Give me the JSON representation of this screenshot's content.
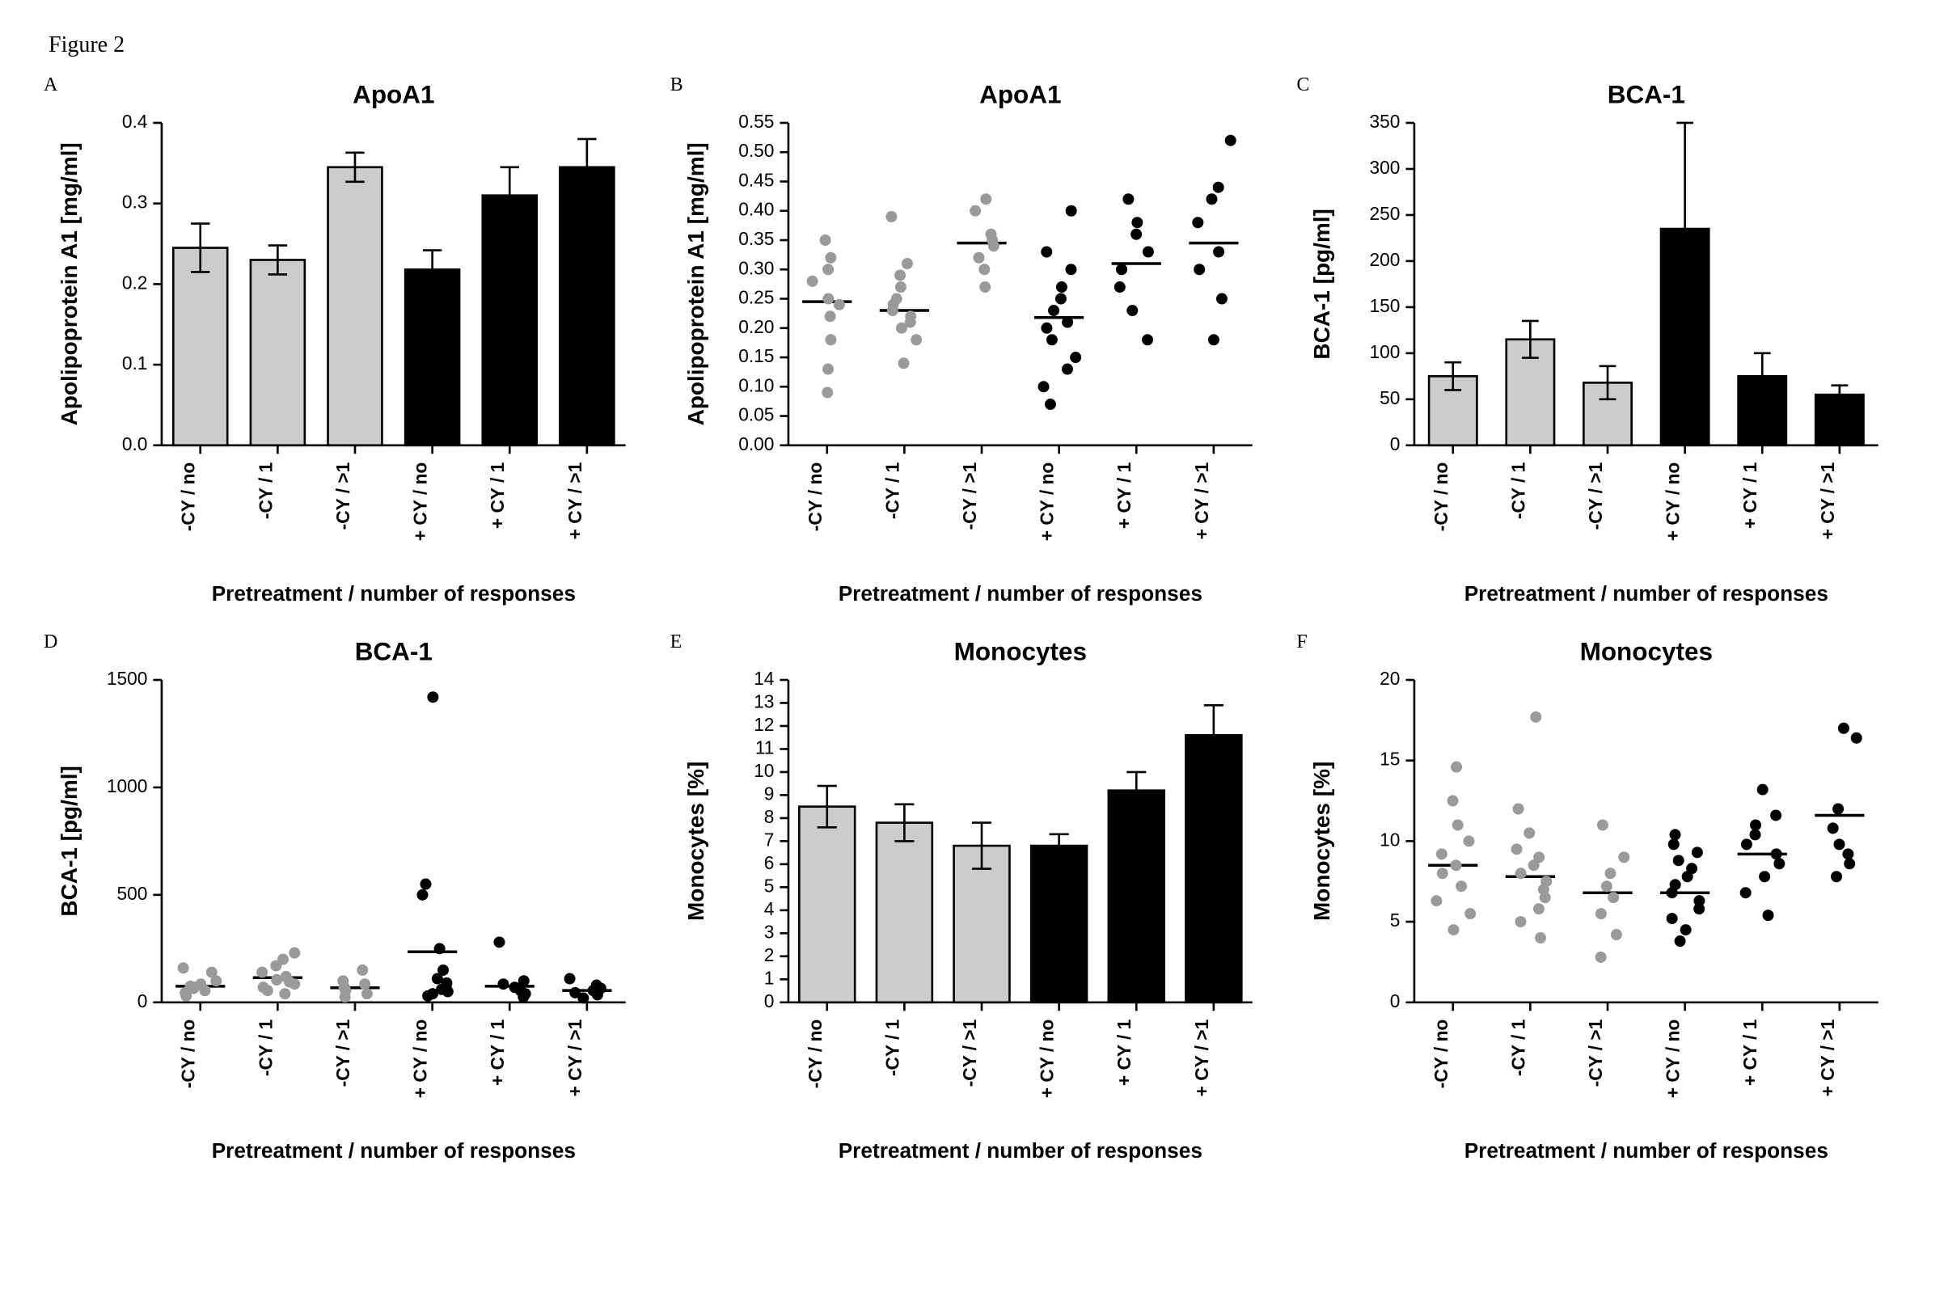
{
  "figure_label": "Figure 2",
  "global": {
    "categories": [
      "-CY / no",
      "-CY / 1",
      "-CY / >1",
      "+ CY / no",
      "+ CY / 1",
      "+ CY / >1"
    ],
    "x_axis_title": "Pretreatment / number of responses",
    "font_family_serif": "Times New Roman, Times, serif",
    "font_family_sans": "Arial, Helvetica, sans-serif",
    "axis_color": "#000000",
    "tick_len": 6,
    "title_fontsize": 18,
    "ylabel_fontsize": 16,
    "tick_fontsize": 13,
    "xlabel_fontsize": 15,
    "xtick_fontsize": 13
  },
  "panels": {
    "A": {
      "letter": "A",
      "type": "bar",
      "title": "ApoA1",
      "ylabel": "Apolipoprotein A1 [mg/ml]",
      "ylim": [
        0.0,
        0.4
      ],
      "yticks": [
        0.0,
        0.1,
        0.2,
        0.3,
        0.4
      ],
      "ytick_labels": [
        "0.0",
        "0.1",
        "0.2",
        "0.3",
        "0.4"
      ],
      "bar_width": 0.7,
      "bars": [
        {
          "value": 0.245,
          "err": 0.03,
          "fill": "#cccccc",
          "stroke": "#000000"
        },
        {
          "value": 0.23,
          "err": 0.018,
          "fill": "#cccccc",
          "stroke": "#000000"
        },
        {
          "value": 0.345,
          "err": 0.018,
          "fill": "#cccccc",
          "stroke": "#000000"
        },
        {
          "value": 0.218,
          "err": 0.024,
          "fill": "#000000",
          "stroke": "#000000"
        },
        {
          "value": 0.31,
          "err": 0.035,
          "fill": "#000000",
          "stroke": "#000000"
        },
        {
          "value": 0.345,
          "err": 0.035,
          "fill": "#000000",
          "stroke": "#000000"
        }
      ]
    },
    "B": {
      "letter": "B",
      "type": "scatter",
      "title": "ApoA1",
      "ylabel": "Apolipoprotein A1 [mg/ml]",
      "ylim": [
        0.0,
        0.55
      ],
      "yticks": [
        0.0,
        0.05,
        0.1,
        0.15,
        0.2,
        0.25,
        0.3,
        0.35,
        0.4,
        0.45,
        0.5,
        0.55
      ],
      "ytick_labels": [
        "0.00",
        "0.05",
        "0.10",
        "0.15",
        "0.20",
        "0.25",
        "0.30",
        "0.35",
        "0.40",
        "0.45",
        "0.50",
        "0.55"
      ],
      "marker_r": 4,
      "jitter_seed": 11,
      "series": [
        {
          "color": "#9a9a9a",
          "mean": 0.245,
          "points": [
            0.09,
            0.13,
            0.18,
            0.22,
            0.24,
            0.25,
            0.28,
            0.3,
            0.32,
            0.35
          ]
        },
        {
          "color": "#9a9a9a",
          "mean": 0.23,
          "points": [
            0.14,
            0.18,
            0.2,
            0.21,
            0.22,
            0.23,
            0.24,
            0.25,
            0.27,
            0.29,
            0.31,
            0.39
          ]
        },
        {
          "color": "#9a9a9a",
          "mean": 0.345,
          "points": [
            0.27,
            0.3,
            0.32,
            0.34,
            0.35,
            0.36,
            0.4,
            0.42
          ]
        },
        {
          "color": "#000000",
          "mean": 0.218,
          "points": [
            0.07,
            0.1,
            0.13,
            0.15,
            0.18,
            0.2,
            0.21,
            0.23,
            0.25,
            0.27,
            0.3,
            0.33,
            0.4
          ]
        },
        {
          "color": "#000000",
          "mean": 0.31,
          "points": [
            0.18,
            0.23,
            0.27,
            0.3,
            0.33,
            0.36,
            0.38,
            0.42
          ]
        },
        {
          "color": "#000000",
          "mean": 0.345,
          "points": [
            0.18,
            0.25,
            0.3,
            0.33,
            0.38,
            0.42,
            0.44,
            0.52
          ]
        }
      ]
    },
    "C": {
      "letter": "C",
      "type": "bar",
      "title": "BCA-1",
      "ylabel": "BCA-1 [pg/ml]",
      "ylim": [
        0,
        350
      ],
      "yticks": [
        0,
        50,
        100,
        150,
        200,
        250,
        300,
        350
      ],
      "ytick_labels": [
        "0",
        "50",
        "100",
        "150",
        "200",
        "250",
        "300",
        "350"
      ],
      "bar_width": 0.62,
      "bars": [
        {
          "value": 75,
          "err": 15,
          "fill": "#cccccc",
          "stroke": "#000000"
        },
        {
          "value": 115,
          "err": 20,
          "fill": "#cccccc",
          "stroke": "#000000"
        },
        {
          "value": 68,
          "err": 18,
          "fill": "#cccccc",
          "stroke": "#000000"
        },
        {
          "value": 235,
          "err": 115,
          "fill": "#000000",
          "stroke": "#000000"
        },
        {
          "value": 75,
          "err": 25,
          "fill": "#000000",
          "stroke": "#000000"
        },
        {
          "value": 55,
          "err": 10,
          "fill": "#000000",
          "stroke": "#000000"
        }
      ]
    },
    "D": {
      "letter": "D",
      "type": "scatter",
      "title": "BCA-1",
      "ylabel": "BCA-1 [pg/ml]",
      "ylim": [
        0,
        1500
      ],
      "yticks": [
        0,
        500,
        1000,
        1500
      ],
      "ytick_labels": [
        "0",
        "500",
        "1000",
        "1500"
      ],
      "marker_r": 4,
      "jitter_seed": 23,
      "series": [
        {
          "color": "#9a9a9a",
          "mean": 75,
          "points": [
            30,
            45,
            55,
            65,
            70,
            75,
            85,
            100,
            140,
            160
          ]
        },
        {
          "color": "#9a9a9a",
          "mean": 115,
          "points": [
            40,
            55,
            70,
            85,
            95,
            105,
            120,
            140,
            170,
            200,
            230
          ]
        },
        {
          "color": "#9a9a9a",
          "mean": 68,
          "points": [
            25,
            40,
            55,
            70,
            85,
            100,
            150
          ]
        },
        {
          "color": "#000000",
          "mean": 235,
          "points": [
            30,
            40,
            50,
            60,
            70,
            90,
            110,
            150,
            250,
            500,
            550,
            1420
          ]
        },
        {
          "color": "#000000",
          "mean": 75,
          "points": [
            25,
            40,
            55,
            70,
            85,
            100,
            280
          ]
        },
        {
          "color": "#000000",
          "mean": 55,
          "points": [
            20,
            35,
            45,
            55,
            65,
            80,
            110
          ]
        }
      ]
    },
    "E": {
      "letter": "E",
      "type": "bar",
      "title": "Monocytes",
      "ylabel": "Monocytes [%]",
      "ylim": [
        0,
        14
      ],
      "yticks": [
        0,
        1,
        2,
        3,
        4,
        5,
        6,
        7,
        8,
        9,
        10,
        11,
        12,
        13,
        14
      ],
      "ytick_labels": [
        "0",
        "1",
        "2",
        "3",
        "4",
        "5",
        "6",
        "7",
        "8",
        "9",
        "10",
        "11",
        "12",
        "13",
        "14"
      ],
      "bar_width": 0.72,
      "bars": [
        {
          "value": 8.5,
          "err": 0.9,
          "fill": "#cccccc",
          "stroke": "#000000"
        },
        {
          "value": 7.8,
          "err": 0.8,
          "fill": "#cccccc",
          "stroke": "#000000"
        },
        {
          "value": 6.8,
          "err": 1.0,
          "fill": "#cccccc",
          "stroke": "#000000"
        },
        {
          "value": 6.8,
          "err": 0.5,
          "fill": "#000000",
          "stroke": "#000000"
        },
        {
          "value": 9.2,
          "err": 0.8,
          "fill": "#000000",
          "stroke": "#000000"
        },
        {
          "value": 11.6,
          "err": 1.3,
          "fill": "#000000",
          "stroke": "#000000"
        }
      ]
    },
    "F": {
      "letter": "F",
      "type": "scatter",
      "title": "Monocytes",
      "ylabel": "Monocytes [%]",
      "ylim": [
        0,
        20
      ],
      "yticks": [
        0,
        5,
        10,
        15,
        20
      ],
      "ytick_labels": [
        "0",
        "5",
        "10",
        "15",
        "20"
      ],
      "marker_r": 4,
      "jitter_seed": 37,
      "series": [
        {
          "color": "#9a9a9a",
          "mean": 8.5,
          "points": [
            4.5,
            5.5,
            6.3,
            7.2,
            8.0,
            8.5,
            9.2,
            10.0,
            11.0,
            12.5,
            14.6
          ]
        },
        {
          "color": "#9a9a9a",
          "mean": 7.8,
          "points": [
            4.0,
            5.0,
            5.8,
            6.5,
            7.0,
            7.5,
            8.0,
            8.5,
            9.0,
            9.5,
            10.5,
            12.0,
            17.7
          ]
        },
        {
          "color": "#9a9a9a",
          "mean": 6.8,
          "points": [
            2.8,
            4.2,
            5.5,
            6.5,
            7.2,
            8.0,
            9.0,
            11.0
          ]
        },
        {
          "color": "#000000",
          "mean": 6.8,
          "points": [
            3.8,
            4.5,
            5.2,
            5.8,
            6.3,
            6.8,
            7.3,
            7.8,
            8.3,
            8.8,
            9.3,
            9.8,
            10.4
          ]
        },
        {
          "color": "#000000",
          "mean": 9.2,
          "points": [
            5.4,
            6.8,
            7.8,
            8.6,
            9.2,
            9.8,
            10.4,
            11.0,
            11.6,
            13.2
          ]
        },
        {
          "color": "#000000",
          "mean": 11.6,
          "points": [
            7.8,
            8.6,
            9.2,
            9.8,
            10.8,
            12.0,
            16.4,
            17.0
          ]
        }
      ]
    }
  }
}
